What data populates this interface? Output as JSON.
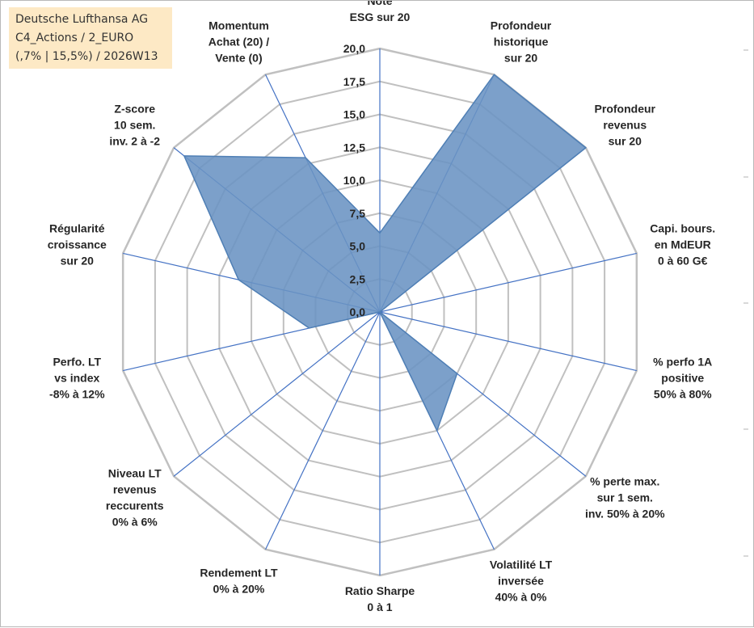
{
  "info_box": {
    "line1": "Deutsche Lufthansa AG",
    "line2": "C4_Actions / 2_EURO",
    "line3": "(,7% | 15,5%) / 2026W13"
  },
  "chart_data": {
    "type": "radar",
    "title": "",
    "ylim": [
      0,
      20
    ],
    "tick_labels": [
      "0,0",
      "2,5",
      "5,0",
      "7,5",
      "10,0",
      "12,5",
      "15,0",
      "17,5",
      "20,0"
    ],
    "grid": true,
    "axes": [
      [
        "Note",
        "ESG sur 20"
      ],
      [
        "Profondeur",
        "historique",
        "sur 20"
      ],
      [
        "Profondeur",
        "revenus",
        "sur 20"
      ],
      [
        "Capi. bours.",
        "en MdEUR",
        "0 à 60 G€"
      ],
      [
        "% perfo 1A",
        "positive",
        "50% à 80%"
      ],
      [
        "% perte max.",
        "sur 1 sem.",
        "inv. 50% à 20%"
      ],
      [
        "Volatilité LT",
        "inversée",
        "40% à 0%"
      ],
      [
        "Ratio Sharpe",
        "0 à 1"
      ],
      [
        "Rendement LT",
        "0% à 20%"
      ],
      [
        "Niveau LT",
        "revenus",
        "reccurents",
        "0% à 6%"
      ],
      [
        "Perfo. LT",
        "vs index",
        "-8% à 12%"
      ],
      [
        "Régularité",
        "croissance",
        "sur 20"
      ],
      [
        "Z-score",
        "10 sem.",
        "inv. 2 à -2"
      ],
      [
        "Momentum",
        "Achat (20) /",
        "Vente (0)"
      ]
    ],
    "series": [
      {
        "values": [
          6.0,
          20.0,
          20.0,
          0.0,
          0.0,
          7.5,
          10.0,
          0.0,
          0.0,
          0.0,
          5.5,
          11.0,
          19.0,
          13.0
        ],
        "color": "#4f7fb5",
        "fill": "#6a93c3",
        "fill_opacity": 0.88
      }
    ],
    "colors": {
      "grid": "#c0c0c0",
      "spokes": "#4472c4"
    }
  }
}
